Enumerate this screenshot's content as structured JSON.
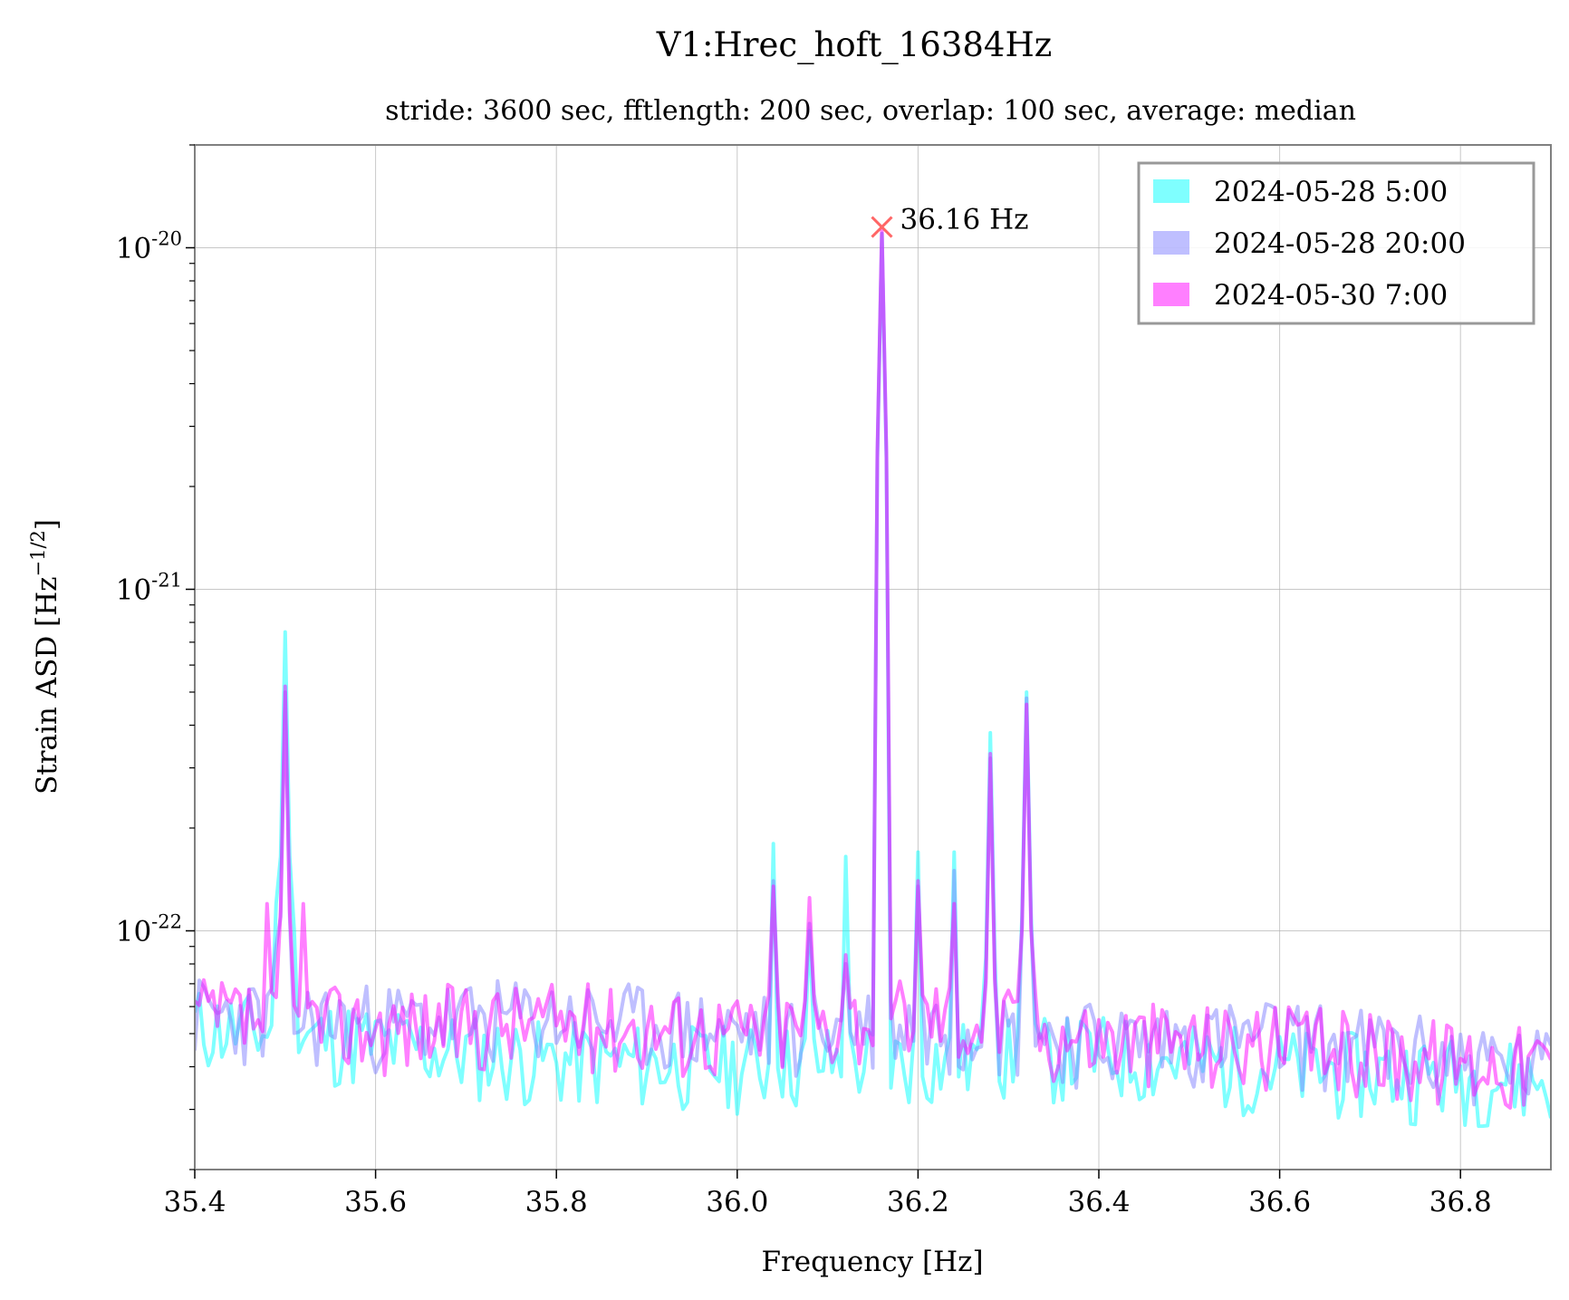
{
  "chart_data": {
    "type": "line",
    "title": "V1:Hrec_hoft_16384Hz",
    "subtitle": "stride: 3600 sec, fftlength: 200 sec, overlap: 100 sec, average: median",
    "xlabel": "Frequency [Hz]",
    "ylabel_main": "Strain ASD [Hz",
    "ylabel_exp": "−1/2",
    "ylabel_close": "]",
    "xlim": [
      35.4,
      36.9
    ],
    "ylim": [
      2e-23,
      2e-20
    ],
    "yscale": "log",
    "grid": true,
    "legend_position": "top-right",
    "x_ticks": [
      35.4,
      35.6,
      35.8,
      36.0,
      36.2,
      36.4,
      36.6,
      36.8
    ],
    "x_tick_labels": [
      "35.4",
      "35.6",
      "35.8",
      "36.0",
      "36.2",
      "36.4",
      "36.6",
      "36.8"
    ],
    "y_ticks": [
      {
        "value": 1e-22,
        "base": "10",
        "exp": "-22"
      },
      {
        "value": 1e-21,
        "base": "10",
        "exp": "-21"
      },
      {
        "value": 1e-20,
        "base": "10",
        "exp": "-20"
      }
    ],
    "annotation": {
      "x": 36.16,
      "y": 1.15e-20,
      "label": "36.16 Hz",
      "marker": "x",
      "color": "#ff6666"
    },
    "series": [
      {
        "name": "2024-05-28 5:00",
        "color": "#00ffff",
        "opacity": 0.5,
        "noise_seed": 11,
        "baseline": [
          [
            35.4,
            5.2e-23
          ],
          [
            35.6,
            4.6e-23
          ],
          [
            35.8,
            4.1e-23
          ],
          [
            36.0,
            4e-23
          ],
          [
            36.2,
            4.1e-23
          ],
          [
            36.4,
            4.3e-23
          ],
          [
            36.6,
            3.9e-23
          ],
          [
            36.9,
            3.6e-23
          ]
        ],
        "peaks": [
          [
            35.5,
            7.5e-22
          ],
          [
            35.49,
            1.2e-22
          ],
          [
            35.51,
            1e-22
          ],
          [
            36.04,
            1.8e-22
          ],
          [
            36.08,
            1e-22
          ],
          [
            36.12,
            1.65e-22
          ],
          [
            36.16,
            1.1e-20
          ],
          [
            36.2,
            1.7e-22
          ],
          [
            36.24,
            1.7e-22
          ],
          [
            36.28,
            3.8e-22
          ],
          [
            36.32,
            5e-22
          ]
        ]
      },
      {
        "name": "2024-05-28 20:00",
        "color": "#8080ff",
        "opacity": 0.5,
        "noise_seed": 23,
        "baseline": [
          [
            35.4,
            5.6e-23
          ],
          [
            35.6,
            5.3e-23
          ],
          [
            35.8,
            5.5e-23
          ],
          [
            36.0,
            5e-23
          ],
          [
            36.2,
            5.3e-23
          ],
          [
            36.4,
            4.7e-23
          ],
          [
            36.6,
            4.8e-23
          ],
          [
            36.9,
            3.9e-23
          ]
        ],
        "peaks": [
          [
            35.5,
            5e-22
          ],
          [
            35.49,
            9e-23
          ],
          [
            36.04,
            1.4e-22
          ],
          [
            36.08,
            1.05e-22
          ],
          [
            36.12,
            8e-23
          ],
          [
            36.16,
            1.1e-20
          ],
          [
            36.2,
            1.35e-22
          ],
          [
            36.24,
            1.5e-22
          ],
          [
            36.28,
            3.2e-22
          ],
          [
            36.32,
            4.8e-22
          ]
        ]
      },
      {
        "name": "2024-05-30 7:00",
        "color": "#ff00ff",
        "opacity": 0.5,
        "noise_seed": 37,
        "baseline": [
          [
            35.4,
            5.5e-23
          ],
          [
            35.6,
            5.2e-23
          ],
          [
            35.8,
            5.4e-23
          ],
          [
            36.0,
            5e-23
          ],
          [
            36.2,
            5.8e-23
          ],
          [
            36.4,
            4.8e-23
          ],
          [
            36.6,
            4.6e-23
          ],
          [
            36.9,
            4e-23
          ]
        ],
        "peaks": [
          [
            35.5,
            5.2e-22
          ],
          [
            35.48,
            1.2e-22
          ],
          [
            35.52,
            1.2e-22
          ],
          [
            36.04,
            1.35e-22
          ],
          [
            36.08,
            1.25e-22
          ],
          [
            36.12,
            8.5e-23
          ],
          [
            36.16,
            1.15e-20
          ],
          [
            36.2,
            1.4e-22
          ],
          [
            36.24,
            1.2e-22
          ],
          [
            36.28,
            3.3e-22
          ],
          [
            36.32,
            4.6e-22
          ]
        ]
      }
    ]
  }
}
